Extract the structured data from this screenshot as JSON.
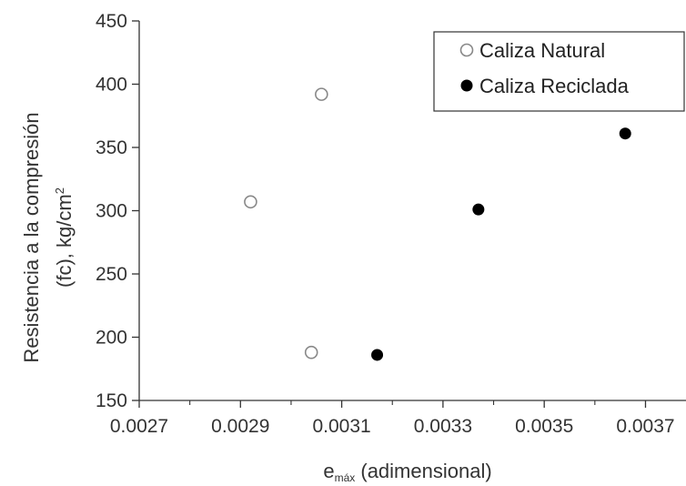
{
  "chart_data": {
    "type": "scatter",
    "title": "",
    "xlabel": {
      "main": "e",
      "sub": "máx",
      "rest": " (adimensional)"
    },
    "ylabel": {
      "line1": "Resistencia a la compresión",
      "line2": "(fc), kg/cm",
      "line2_sup": "2"
    },
    "xlim": [
      0.0027,
      0.00378
    ],
    "ylim": [
      150,
      450
    ],
    "xticks": [
      "0.0027",
      "0.0029",
      "0.0031",
      "0.0033",
      "0.0035",
      "0.0037"
    ],
    "xtick_values": [
      0.0027,
      0.0029,
      0.0031,
      0.0033,
      0.0035,
      0.0037
    ],
    "yticks": [
      "150",
      "200",
      "250",
      "300",
      "350",
      "400",
      "450"
    ],
    "ytick_values": [
      150,
      200,
      250,
      300,
      350,
      400,
      450
    ],
    "grid": false,
    "legend_position": "top-right",
    "series": [
      {
        "name": "Caliza Natural",
        "marker": "open-circle",
        "color": "#888888",
        "points": [
          {
            "x": 0.00292,
            "y": 307
          },
          {
            "x": 0.00306,
            "y": 392
          },
          {
            "x": 0.00304,
            "y": 188
          }
        ]
      },
      {
        "name": "Caliza Reciclada",
        "marker": "filled-circle",
        "color": "#000000",
        "points": [
          {
            "x": 0.00317,
            "y": 186
          },
          {
            "x": 0.00337,
            "y": 301
          },
          {
            "x": 0.00366,
            "y": 361
          }
        ]
      }
    ]
  }
}
